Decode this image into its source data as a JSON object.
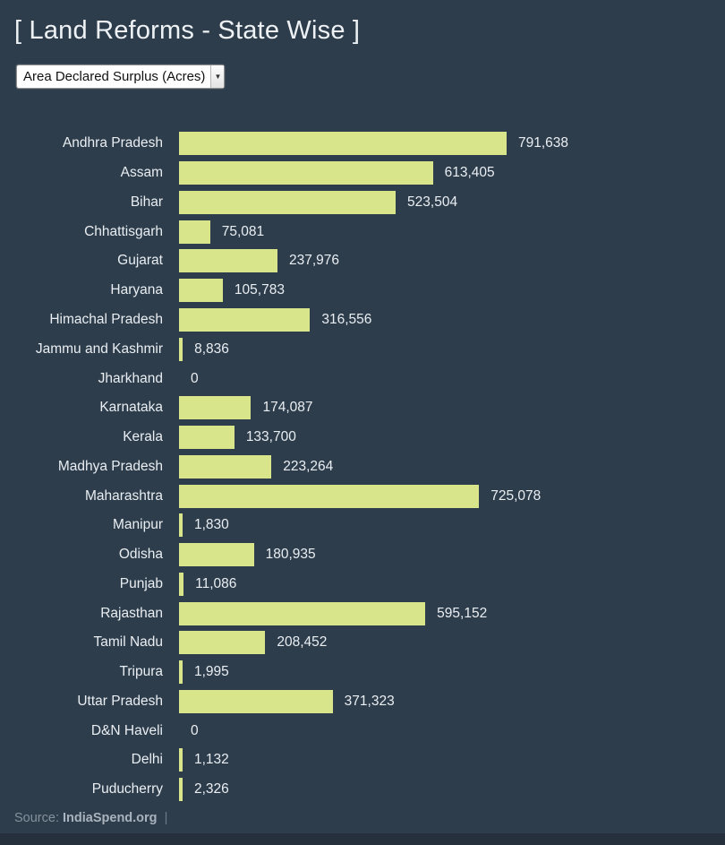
{
  "page": {
    "background_color": "#2e3d4c",
    "bottom_strip_color": "#25303c"
  },
  "header": {
    "title": "[ Land Reforms - State Wise ]"
  },
  "controls": {
    "metric_select": {
      "selected_option": "Area Declared Surplus (Acres)",
      "arrow_glyph": "▼"
    }
  },
  "chart_data": {
    "type": "bar",
    "orientation": "horizontal",
    "title": "[ Land Reforms - State Wise ]",
    "metric": "Area Declared Surplus (Acres)",
    "bar_color": "#d8e58a",
    "max_value": 791638,
    "xlim": [
      0,
      791638
    ],
    "grid": false,
    "legend": false,
    "categories": [
      "Andhra Pradesh",
      "Assam",
      "Bihar",
      "Chhattisgarh",
      "Gujarat",
      "Haryana",
      "Himachal Pradesh",
      "Jammu and Kashmir",
      "Jharkhand",
      "Karnataka",
      "Kerala",
      "Madhya Pradesh",
      "Maharashtra",
      "Manipur",
      "Odisha",
      "Punjab",
      "Rajasthan",
      "Tamil Nadu",
      "Tripura",
      "Uttar Pradesh",
      "D&N Haveli",
      "Delhi",
      "Puducherry"
    ],
    "values": [
      791638,
      613405,
      523504,
      75081,
      237976,
      105783,
      316556,
      8836,
      0,
      174087,
      133700,
      223264,
      725078,
      1830,
      180935,
      11086,
      595152,
      208452,
      1995,
      371323,
      0,
      1132,
      2326
    ],
    "value_labels": [
      "791,638",
      "613,405",
      "523,504",
      "75,081",
      "237,976",
      "105,783",
      "316,556",
      "8,836",
      "0",
      "174,087",
      "133,700",
      "223,264",
      "725,078",
      "1,830",
      "180,935",
      "11,086",
      "595,152",
      "208,452",
      "1,995",
      "371,323",
      "0",
      "1,132",
      "2,326"
    ]
  },
  "footer": {
    "source_label": "Source:",
    "source_name": "IndiaSpend.org",
    "divider": "|"
  }
}
